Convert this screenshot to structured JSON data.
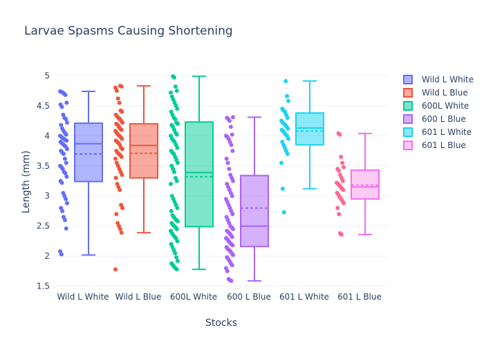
{
  "chart_data": {
    "type": "box",
    "title": "Larvae Spasms Causing Shortening",
    "xlabel": "Stocks",
    "ylabel": "Length (mm)",
    "ylim": [
      1.45,
      5.05
    ],
    "yticks": [
      1.5,
      2,
      2.5,
      3,
      3.5,
      4,
      4.5,
      5
    ],
    "ytick_labels": [
      "1.5",
      "2",
      "2.5",
      "3",
      "3.5",
      "4",
      "4.5",
      "5"
    ],
    "grid": true,
    "legend_position": "right",
    "boxmean": true,
    "points": "all",
    "series": [
      {
        "name": "Wild L White",
        "color": "#636efa",
        "lowerfence": 2.02,
        "q1": 3.24,
        "median": 3.87,
        "q3": 4.21,
        "upperfence": 4.74,
        "mean": 3.7,
        "points": [
          4.74,
          4.73,
          4.72,
          4.7,
          4.68,
          4.55,
          4.52,
          4.48,
          4.35,
          4.3,
          4.28,
          4.22,
          4.18,
          4.12,
          4.08,
          4.05,
          4.02,
          4.0,
          3.98,
          3.96,
          3.95,
          3.93,
          3.92,
          3.9,
          3.88,
          3.86,
          3.84,
          3.82,
          3.78,
          3.75,
          3.72,
          3.7,
          3.62,
          3.55,
          3.5,
          3.48,
          3.45,
          3.4,
          3.38,
          3.32,
          3.25,
          3.22,
          3.05,
          3.0,
          2.95,
          2.88,
          2.8,
          2.75,
          2.65,
          2.6,
          2.46,
          2.08,
          2.03
        ]
      },
      {
        "name": "Wild L Blue",
        "color": "#ef553b",
        "lowerfence": 2.39,
        "q1": 3.3,
        "median": 3.84,
        "q3": 4.2,
        "upperfence": 4.83,
        "mean": 3.71,
        "points": [
          4.83,
          4.82,
          4.8,
          4.75,
          4.62,
          4.55,
          4.42,
          4.4,
          4.35,
          4.32,
          4.3,
          4.28,
          4.25,
          4.22,
          4.2,
          4.18,
          4.15,
          4.12,
          4.1,
          4.08,
          4.05,
          4.02,
          4.0,
          3.98,
          3.95,
          3.92,
          3.9,
          3.88,
          3.85,
          3.8,
          3.78,
          3.75,
          3.72,
          3.7,
          3.68,
          3.65,
          3.62,
          3.55,
          3.5,
          3.45,
          3.4,
          3.35,
          3.3,
          3.2,
          3.15,
          3.1,
          2.85,
          2.8,
          2.7,
          2.55,
          2.5,
          2.45,
          2.39,
          1.78
        ]
      },
      {
        "name": "600L White",
        "color": "#00cc96",
        "lowerfence": 1.78,
        "q1": 2.49,
        "median": 3.39,
        "q3": 4.23,
        "upperfence": 4.99,
        "mean": 3.32,
        "points": [
          4.99,
          4.97,
          4.82,
          4.75,
          4.72,
          4.65,
          4.6,
          4.55,
          4.5,
          4.45,
          4.4,
          4.35,
          4.3,
          4.28,
          4.22,
          4.2,
          4.18,
          4.15,
          4.1,
          4.05,
          4.02,
          4.0,
          3.95,
          3.92,
          3.9,
          3.85,
          3.8,
          3.75,
          3.72,
          3.7,
          3.65,
          3.6,
          3.55,
          3.5,
          3.45,
          3.4,
          3.3,
          3.25,
          3.2,
          3.0,
          2.95,
          2.9,
          2.85,
          2.8,
          2.75,
          2.68,
          2.65,
          2.62,
          2.6,
          2.58,
          2.55,
          2.52,
          2.5,
          2.48,
          2.45,
          2.42,
          2.38,
          2.35,
          2.32,
          2.3,
          2.25,
          2.2,
          2.15,
          2.1,
          2.05,
          1.98,
          1.92,
          1.88,
          1.85,
          1.82,
          1.8,
          1.78
        ]
      },
      {
        "name": "600 L Blue",
        "color": "#ab63fa",
        "lowerfence": 1.59,
        "q1": 2.16,
        "median": 2.5,
        "q3": 3.34,
        "upperfence": 4.31,
        "mean": 2.8,
        "points": [
          4.31,
          4.3,
          4.28,
          4.25,
          4.15,
          4.02,
          4.0,
          3.98,
          3.95,
          3.9,
          3.85,
          3.75,
          3.62,
          3.55,
          3.45,
          3.35,
          3.3,
          3.25,
          3.2,
          3.15,
          3.1,
          3.05,
          3.0,
          2.95,
          2.9,
          2.85,
          2.8,
          2.75,
          2.7,
          2.65,
          2.6,
          2.55,
          2.5,
          2.48,
          2.45,
          2.42,
          2.4,
          2.38,
          2.35,
          2.32,
          2.3,
          2.28,
          2.25,
          2.22,
          2.2,
          2.18,
          2.15,
          2.12,
          2.1,
          2.08,
          2.05,
          2.02,
          1.98,
          1.95,
          1.92,
          1.88,
          1.85,
          1.8,
          1.75,
          1.62,
          1.6,
          1.59
        ]
      },
      {
        "name": "601 L White",
        "color": "#19d3f3",
        "lowerfence": 3.12,
        "q1": 3.85,
        "median": 4.13,
        "q3": 4.38,
        "upperfence": 4.91,
        "mean": 4.08,
        "points": [
          4.91,
          4.66,
          4.58,
          4.45,
          4.42,
          4.4,
          4.35,
          4.3,
          4.25,
          4.22,
          4.2,
          4.18,
          4.15,
          4.12,
          4.1,
          4.08,
          4.05,
          4.02,
          4.0,
          3.95,
          3.9,
          3.85,
          3.8,
          3.75,
          3.7,
          3.55,
          3.12,
          2.73
        ]
      },
      {
        "name": "601 L Blue",
        "color": "#ff6692",
        "fill": "#fecbf5",
        "stroke": "#f16ff1",
        "lowerfence": 2.36,
        "q1": 2.95,
        "median": 3.15,
        "q3": 3.43,
        "upperfence": 4.04,
        "mean": 3.18,
        "points": [
          4.04,
          4.02,
          3.65,
          3.55,
          3.48,
          3.45,
          3.42,
          3.35,
          3.3,
          3.25,
          3.22,
          3.2,
          3.18,
          3.15,
          3.12,
          3.1,
          3.05,
          3.02,
          2.98,
          2.95,
          2.92,
          2.88,
          2.8,
          2.7,
          2.38,
          2.36
        ]
      }
    ]
  }
}
